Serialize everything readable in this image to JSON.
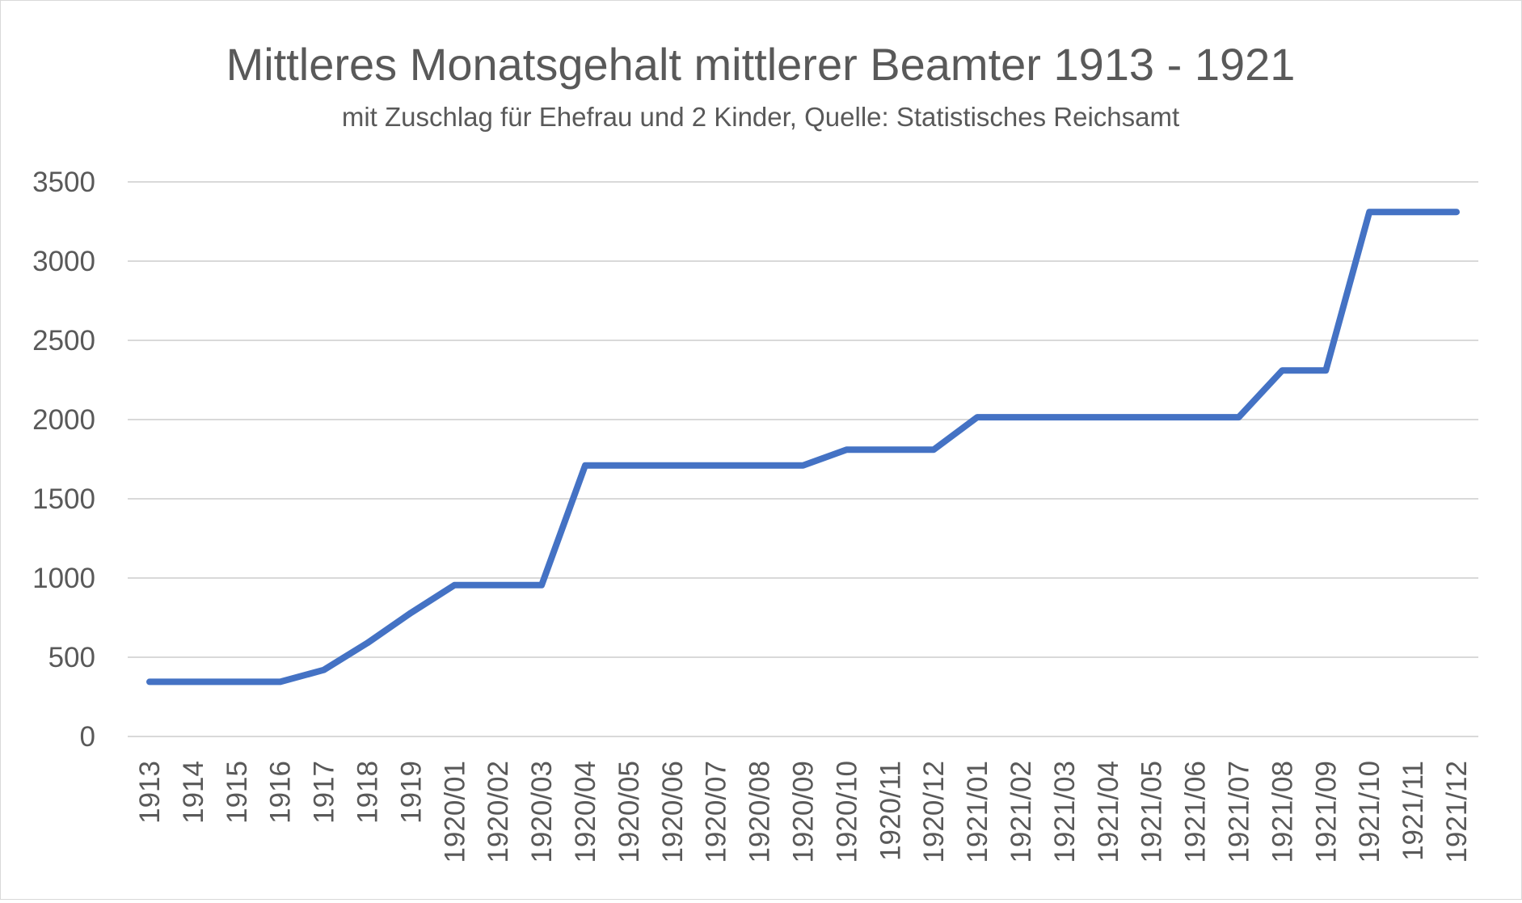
{
  "chart_data": {
    "type": "line",
    "title": "Mittleres Monatsgehalt mittlerer Beamter 1913 - 1921",
    "subtitle": "mit Zuschlag für Ehefrau und 2 Kinder, Quelle: Statistisches Reichsamt",
    "xlabel": "",
    "ylabel": "",
    "ylim": [
      0,
      3500
    ],
    "yticks": [
      0,
      500,
      1000,
      1500,
      2000,
      2500,
      3000,
      3500
    ],
    "grid": true,
    "legend": "none",
    "categories": [
      "1913",
      "1914",
      "1915",
      "1916",
      "1917",
      "1918",
      "1919",
      "1920/01",
      "1920/02",
      "1920/03",
      "1920/04",
      "1920/05",
      "1920/06",
      "1920/07",
      "1920/08",
      "1920/09",
      "1920/10",
      "1920/11",
      "1920/12",
      "1921/01",
      "1921/02",
      "1921/03",
      "1921/04",
      "1921/05",
      "1921/06",
      "1921/07",
      "1921/08",
      "1921/09",
      "1921/10",
      "1921/11",
      "1921/12"
    ],
    "series": [
      {
        "color": "#4472c4",
        "values": [
          345,
          345,
          345,
          345,
          420,
          590,
          780,
          955,
          955,
          955,
          1710,
          1710,
          1710,
          1710,
          1710,
          1710,
          1810,
          1810,
          1810,
          2015,
          2015,
          2015,
          2015,
          2015,
          2015,
          2015,
          2310,
          2310,
          3310,
          3310,
          3310
        ]
      }
    ]
  }
}
